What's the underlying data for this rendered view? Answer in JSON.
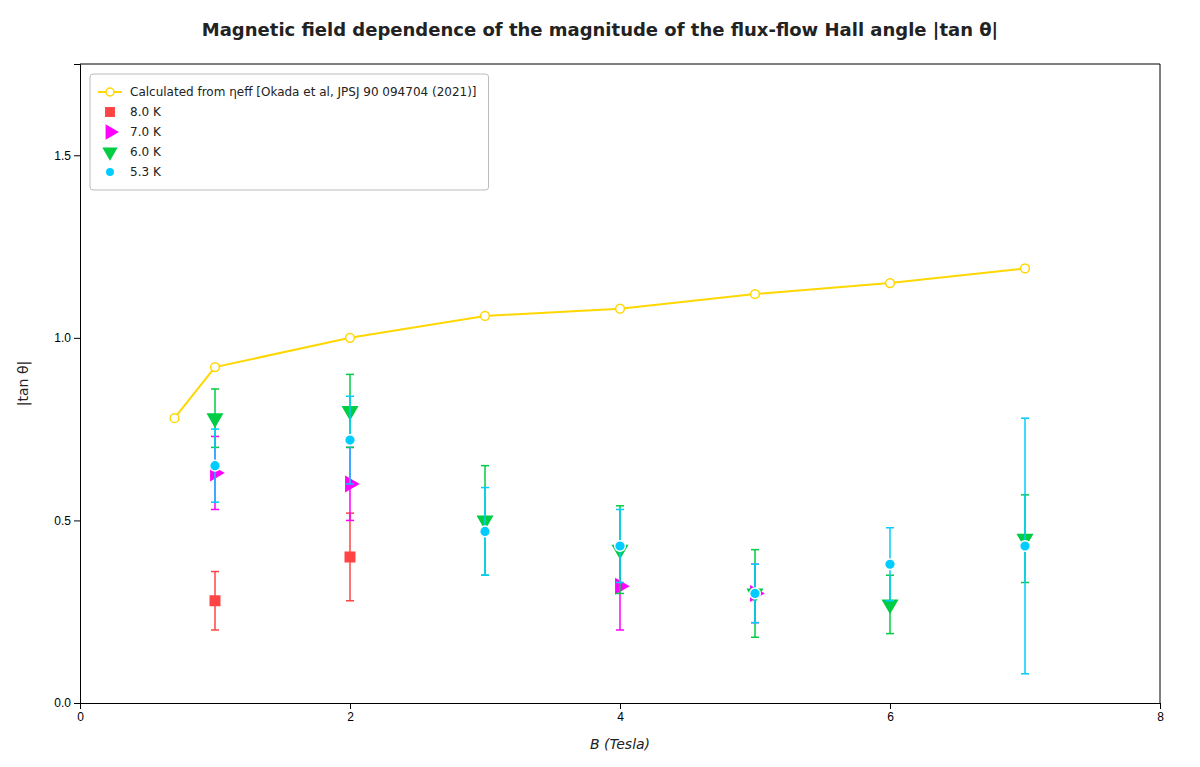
{
  "chart_data": {
    "type": "scatter",
    "title": "Magnetic field dependence of the magnitude of the flux-flow Hall angle |tan θ|",
    "x_label": "B (Tesla)",
    "y_label": "|tan θ|",
    "xlim": [
      0,
      8
    ],
    "ylim": [
      0.0,
      1.75
    ],
    "xticks": [
      0,
      2,
      4,
      6,
      8
    ],
    "yticks": [
      {
        "value": 0.0,
        "label": "0.0"
      },
      {
        "value": 0.5,
        "label": "0.5"
      },
      {
        "value": 1.0,
        "label": "1.0"
      },
      {
        "value": 1.5,
        "label": "1.5"
      }
    ],
    "grid": false,
    "legend": "upper left",
    "series": [
      {
        "name": "Calculated from ηeff [Okada et al, JPSJ 90 094704 (2021)]",
        "type": "line",
        "marker": "circle",
        "color": "#FFD700",
        "x": [
          0.7,
          1.0,
          2.0,
          3.0,
          4.0,
          5.0,
          6.0,
          7.0
        ],
        "values": [
          0.78,
          0.92,
          1.0,
          1.06,
          1.08,
          1.12,
          1.15,
          1.19
        ]
      },
      {
        "name": "8.0 K",
        "type": "scatter",
        "marker": "square",
        "color": "#FF4444",
        "x": [
          1.0,
          2.0
        ],
        "values": [
          0.28,
          0.4
        ],
        "errors": [
          0.08,
          0.12
        ]
      },
      {
        "name": "7.0 K",
        "type": "scatter",
        "marker": "triangle-right",
        "color": "#FF00FF",
        "x": [
          1.0,
          2.0,
          4.0,
          5.0
        ],
        "values": [
          0.63,
          0.6,
          0.32,
          0.3
        ],
        "errors": [
          0.1,
          0.1,
          0.12,
          0.08
        ]
      },
      {
        "name": "6.0 K",
        "type": "scatter",
        "marker": "triangle-down",
        "color": "#00CC44",
        "x": [
          1.0,
          2.0,
          3.0,
          4.0,
          5.0,
          6.0,
          7.0
        ],
        "values": [
          0.78,
          0.8,
          0.5,
          0.42,
          0.3,
          0.27,
          0.45
        ],
        "errors": [
          0.08,
          0.1,
          0.15,
          0.12,
          0.12,
          0.08,
          0.12
        ]
      },
      {
        "name": "5.3 K",
        "type": "scatter",
        "marker": "circle",
        "color": "#00CCFF",
        "x": [
          1.0,
          2.0,
          3.0,
          4.0,
          5.0,
          6.0,
          7.0
        ],
        "values": [
          0.65,
          0.72,
          0.47,
          0.43,
          0.3,
          0.38,
          0.43
        ],
        "errors": [
          0.1,
          0.12,
          0.12,
          0.1,
          0.08,
          0.1,
          0.35
        ]
      }
    ]
  }
}
